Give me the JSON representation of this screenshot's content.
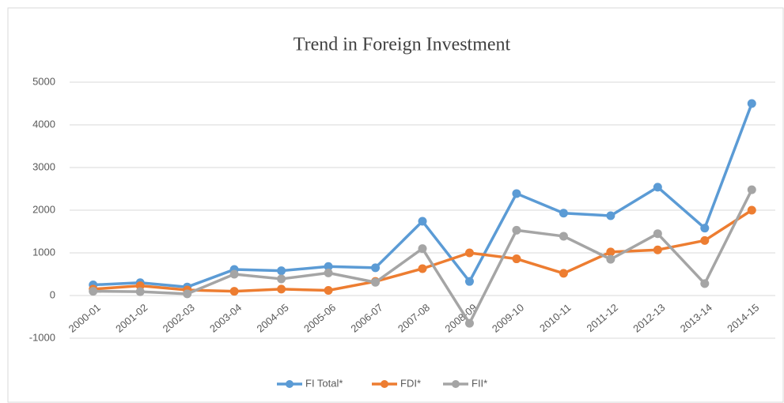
{
  "chart_data": {
    "type": "line",
    "title": "Trend in Foreign Investment",
    "categories": [
      "2000-01",
      "2001-02",
      "2002-03",
      "2003-04",
      "2004-05",
      "2005-06",
      "2006-07",
      "2007-08",
      "2008-09",
      "2009-10",
      "2010-11",
      "2011-12",
      "2012-13",
      "2013-14",
      "2014-15"
    ],
    "series": [
      {
        "name": "FI Total*",
        "color": "#5b9bd5",
        "values": [
          250,
          300,
          200,
          610,
          580,
          680,
          650,
          1740,
          330,
          2390,
          1930,
          1870,
          2540,
          1580,
          4500
        ]
      },
      {
        "name": "FDI*",
        "color": "#ed7d31",
        "values": [
          150,
          230,
          130,
          100,
          150,
          120,
          330,
          630,
          1000,
          860,
          520,
          1020,
          1070,
          1290,
          2000
        ]
      },
      {
        "name": "FII*",
        "color": "#a5a5a5",
        "values": [
          100,
          90,
          40,
          500,
          390,
          530,
          310,
          1100,
          -650,
          1530,
          1390,
          850,
          1450,
          280,
          2480
        ]
      }
    ],
    "ylim": [
      -1000,
      5000
    ],
    "yticks": [
      -1000,
      0,
      1000,
      2000,
      3000,
      4000,
      5000
    ],
    "grid": true,
    "legend": "bottom"
  }
}
